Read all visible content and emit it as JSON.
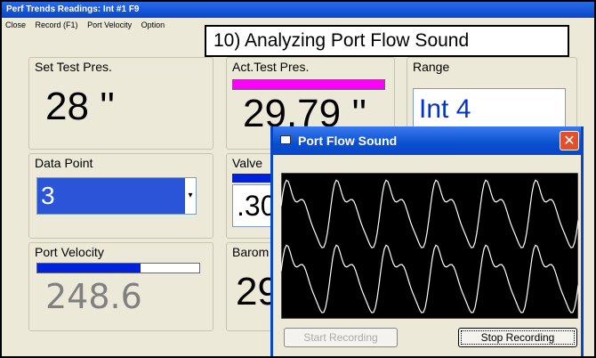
{
  "window": {
    "title": "Perf Trends Readings: Int #1  F9",
    "menu": [
      "Close",
      "Record (F1)",
      "Port Velocity",
      "Option"
    ]
  },
  "callout": "10) Analyzing Port Flow Sound",
  "panels": [
    {
      "label": "Set Test Pres.",
      "value": "28 ''"
    },
    {
      "label": "Act.Test Pres.",
      "value": "29.79 ''"
    },
    {
      "label": "Range",
      "value": "Int 4"
    },
    {
      "label": "Data Point",
      "value": "3"
    },
    {
      "label": "Valve",
      "value": ".30"
    },
    {
      "label": "Port Velocity",
      "value": "248.6"
    },
    {
      "label": "Barom",
      "value": "29"
    }
  ],
  "dialog": {
    "title": "Port Flow Sound",
    "buttons": [
      "Start Recording",
      "Stop Recording"
    ]
  }
}
